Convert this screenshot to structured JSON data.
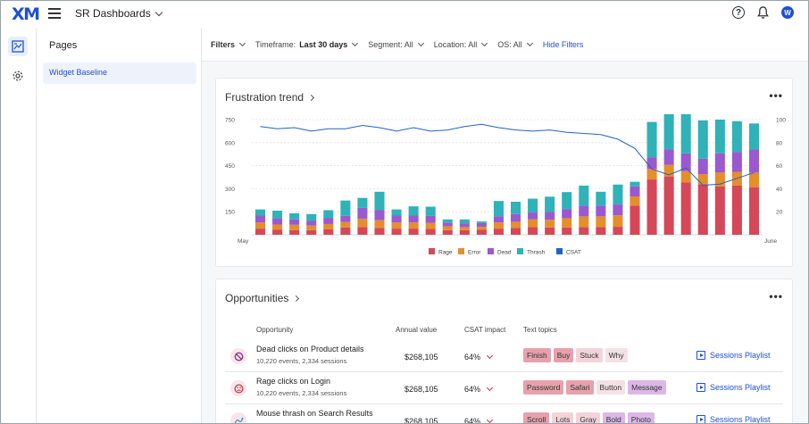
{
  "app": {
    "logo": "XM",
    "dashboard_title": "SR Dashboards",
    "avatar_initial": "W"
  },
  "pages": {
    "title": "Pages",
    "items": [
      {
        "label": "Widget Baseline"
      }
    ]
  },
  "filters": {
    "filters_label": "Filters",
    "timeframe_label": "Timeframe:",
    "timeframe_value": "Last 30 days",
    "segment": "Segment: All",
    "location": "Location: All",
    "os": "OS: All",
    "hide_filters": "Hide Filters"
  },
  "frustration_card": {
    "title": "Frustration trend"
  },
  "chart_data": {
    "type": "bar",
    "title": "Frustration trend",
    "x_start_label": "May",
    "x_end_label": "June",
    "y_left_ticks": [
      "750",
      "600",
      "450",
      "300",
      "150"
    ],
    "y_right_ticks": [
      "100",
      "80",
      "60",
      "40",
      "20"
    ],
    "ylim": [
      0,
      750
    ],
    "y2lim": [
      0,
      100
    ],
    "grid": true,
    "legend_position": "bottom",
    "colors": {
      "Rage": "#d6475a",
      "Error": "#e58e2a",
      "Dead": "#9b59d0",
      "Thrash": "#2fb2b8",
      "CSAT": "#1f63c6"
    },
    "series": [
      {
        "name": "Rage",
        "values": [
          40,
          32,
          30,
          30,
          35,
          48,
          50,
          45,
          40,
          40,
          38,
          30,
          30,
          32,
          40,
          45,
          50,
          48,
          48,
          50,
          50,
          52,
          190,
          360,
          380,
          340,
          330,
          315,
          320,
          310
        ]
      },
      {
        "name": "Error",
        "values": [
          40,
          35,
          35,
          30,
          35,
          35,
          55,
          50,
          40,
          40,
          40,
          25,
          20,
          20,
          40,
          40,
          50,
          50,
          60,
          70,
          70,
          75,
          60,
          70,
          75,
          75,
          65,
          90,
          90,
          95
        ]
      },
      {
        "name": "Dead",
        "values": [
          45,
          40,
          35,
          30,
          40,
          40,
          70,
          65,
          45,
          45,
          45,
          25,
          25,
          25,
          40,
          50,
          45,
          50,
          60,
          70,
          70,
          70,
          65,
          75,
          100,
          115,
          100,
          125,
          130,
          150
        ]
      },
      {
        "name": "Thrash",
        "values": [
          40,
          50,
          40,
          45,
          50,
          100,
          65,
          120,
          40,
          60,
          60,
          20,
          25,
          10,
          100,
          80,
          90,
          100,
          110,
          130,
          90,
          130,
          30,
          230,
          250,
          270,
          250,
          220,
          200,
          170
        ]
      },
      {
        "name": "CSAT",
        "values": [
          94,
          92,
          93,
          90,
          92,
          92,
          95,
          93,
          90,
          93,
          90,
          91,
          94,
          96,
          93,
          91,
          90,
          91,
          89,
          88,
          87,
          83,
          75,
          57,
          52,
          58,
          43,
          44,
          49,
          54
        ]
      }
    ]
  },
  "opportunities_card": {
    "title": "Opportunities",
    "columns": {
      "opportunity": "Opportunity",
      "annual_value": "Annual value",
      "csat_impact": "CSAT impact",
      "text_topics": "Text topics"
    },
    "rows": [
      {
        "title": "Dead clicks on Product details",
        "sub": "10,220 events, 2,334 sessions",
        "value": "$268,105",
        "csat": "64%",
        "icon": "prohibited-icon",
        "tags": [
          {
            "label": "Finish",
            "style": "red"
          },
          {
            "label": "Buy",
            "style": "red"
          },
          {
            "label": "Stuck",
            "style": "pink"
          },
          {
            "label": "Why",
            "style": "pale"
          }
        ],
        "playlist": "Sessions Playlist"
      },
      {
        "title": "Rage clicks on Login",
        "sub": "10,220 events, 2,334 sessions",
        "value": "$268,105",
        "csat": "64%",
        "icon": "angry-face-icon",
        "tags": [
          {
            "label": "Password",
            "style": "red"
          },
          {
            "label": "Safari",
            "style": "red"
          },
          {
            "label": "Button",
            "style": "pale"
          },
          {
            "label": "Message",
            "style": "lav"
          }
        ],
        "playlist": "Sessions Playlist"
      },
      {
        "title": "Mouse thrash on Search Results",
        "sub": "",
        "value": "$268,105",
        "csat": "64%",
        "icon": "thrash-icon",
        "tags": [
          {
            "label": "Scroll",
            "style": "red"
          },
          {
            "label": "Lots",
            "style": "pink"
          },
          {
            "label": "Gray",
            "style": "pink"
          },
          {
            "label": "Bold",
            "style": "lav"
          },
          {
            "label": "Photo",
            "style": "lav"
          }
        ],
        "playlist": "Sessions Playlist"
      }
    ]
  }
}
